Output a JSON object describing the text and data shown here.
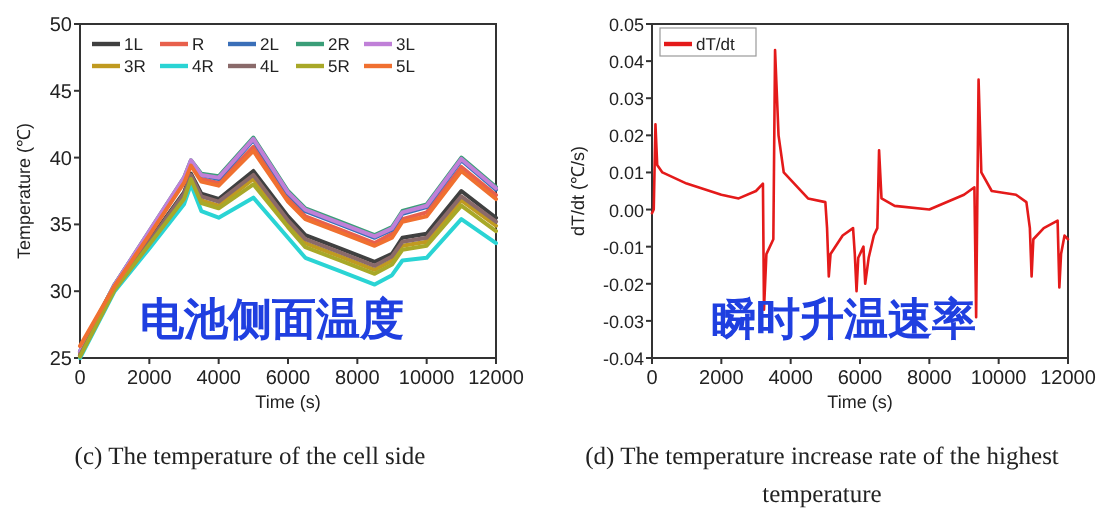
{
  "chart_data": [
    {
      "type": "line",
      "xlabel": "Time (s)",
      "ylabel": "Temperature (℃)",
      "xlim": [
        0,
        12000
      ],
      "ylim": [
        25,
        50
      ],
      "xticks": [
        0,
        2000,
        4000,
        6000,
        8000,
        10000,
        12000
      ],
      "yticks": [
        25,
        30,
        35,
        40,
        45,
        50
      ],
      "legend": "top left",
      "x": [
        0,
        1000,
        2000,
        3000,
        3200,
        3500,
        4000,
        5000,
        6000,
        6500,
        7500,
        8500,
        9000,
        9300,
        10000,
        11000,
        12000
      ],
      "series": [
        {
          "name": "1L",
          "color": "#404040",
          "values": [
            25.2,
            30.2,
            33.8,
            37.4,
            38.8,
            37.3,
            36.9,
            39.0,
            35.6,
            34.2,
            33.2,
            32.2,
            32.8,
            34.0,
            34.3,
            37.5,
            35.5
          ]
        },
        {
          "name": "R",
          "color": "#e8604c",
          "values": [
            25.4,
            30.4,
            34.3,
            38.2,
            39.5,
            38.4,
            38.1,
            40.8,
            37.0,
            35.6,
            34.6,
            33.6,
            34.3,
            35.4,
            35.9,
            39.3,
            37.2
          ]
        },
        {
          "name": "2L",
          "color": "#3a6fb8",
          "values": [
            25.5,
            30.5,
            34.4,
            38.4,
            39.7,
            38.7,
            38.4,
            41.3,
            37.3,
            36.0,
            35.0,
            34.0,
            34.6,
            35.8,
            36.3,
            39.8,
            37.6
          ]
        },
        {
          "name": "2R",
          "color": "#3a9e78",
          "values": [
            25.5,
            30.5,
            34.5,
            38.5,
            39.8,
            38.8,
            38.6,
            41.5,
            37.5,
            36.2,
            35.2,
            34.2,
            34.8,
            36.0,
            36.5,
            40.0,
            37.8
          ]
        },
        {
          "name": "3L",
          "color": "#c080d8",
          "values": [
            25.5,
            30.5,
            34.5,
            38.5,
            39.8,
            38.7,
            38.5,
            41.4,
            37.4,
            36.1,
            35.1,
            34.1,
            34.7,
            35.9,
            36.4,
            39.9,
            37.7
          ]
        },
        {
          "name": "3R",
          "color": "#c09a20",
          "values": [
            25.2,
            30.2,
            33.6,
            37.1,
            38.5,
            36.8,
            36.4,
            38.4,
            35.1,
            33.6,
            32.6,
            31.6,
            32.3,
            33.4,
            33.7,
            36.8,
            34.9
          ]
        },
        {
          "name": "4R",
          "color": "#2ad4d4",
          "values": [
            25.0,
            30.0,
            33.2,
            36.5,
            38.0,
            36.0,
            35.5,
            37.0,
            34.0,
            32.5,
            31.5,
            30.5,
            31.2,
            32.3,
            32.5,
            35.4,
            33.6
          ]
        },
        {
          "name": "4L",
          "color": "#8a6a6a",
          "values": [
            25.2,
            30.2,
            33.7,
            37.3,
            38.7,
            37.1,
            36.7,
            38.7,
            35.3,
            33.9,
            32.9,
            31.9,
            32.6,
            33.7,
            34.0,
            37.1,
            35.2
          ]
        },
        {
          "name": "5R",
          "color": "#a8a828",
          "values": [
            25.1,
            30.1,
            33.5,
            36.9,
            38.4,
            36.6,
            36.2,
            38.0,
            34.8,
            33.3,
            32.3,
            31.3,
            32.0,
            33.1,
            33.4,
            36.4,
            34.5
          ]
        },
        {
          "name": "5L",
          "color": "#f07030",
          "values": [
            25.9,
            30.4,
            34.2,
            38.1,
            39.4,
            38.2,
            37.9,
            40.5,
            36.7,
            35.4,
            34.4,
            33.4,
            34.0,
            35.2,
            35.6,
            39.0,
            36.9
          ]
        }
      ],
      "annotations": [
        "电池侧面温度",
        "(c) The temperature of the cell side"
      ]
    },
    {
      "type": "line",
      "xlabel": "Time (s)",
      "ylabel": "dT/dt (℃/s)",
      "xlim": [
        0,
        12000
      ],
      "ylim": [
        -0.04,
        0.05
      ],
      "xticks": [
        0,
        2000,
        4000,
        6000,
        8000,
        10000,
        12000
      ],
      "yticks": [
        -0.04,
        -0.03,
        -0.02,
        -0.01,
        {
          "value": 0,
          "label": "0.00"
        },
        0.01,
        0.02,
        0.03,
        0.04,
        0.05
      ],
      "legend": "top left",
      "series": [
        {
          "name": "dT/dt",
          "color": "#e41a1a",
          "x": [
            0,
            50,
            100,
            150,
            300,
            1000,
            2000,
            2500,
            3000,
            3200,
            3230,
            3300,
            3500,
            3550,
            3650,
            3800,
            4500,
            5000,
            5050,
            5100,
            5150,
            5500,
            5800,
            5850,
            5900,
            5950,
            6100,
            6150,
            6250,
            6400,
            6500,
            6550,
            6620,
            7000,
            8000,
            9000,
            9300,
            9350,
            9420,
            9500,
            9800,
            10500,
            10800,
            10900,
            10950,
            11000,
            11300,
            11700,
            11750,
            11800,
            11900,
            12000
          ],
          "values": [
            -0.001,
            0.0,
            0.023,
            0.012,
            0.01,
            0.007,
            0.004,
            0.003,
            0.005,
            0.007,
            -0.027,
            -0.012,
            -0.008,
            0.043,
            0.02,
            0.01,
            0.003,
            0.002,
            -0.005,
            -0.018,
            -0.012,
            -0.007,
            -0.005,
            -0.012,
            -0.022,
            -0.013,
            -0.01,
            -0.02,
            -0.013,
            -0.007,
            -0.005,
            0.016,
            0.003,
            0.001,
            0.0,
            0.004,
            0.006,
            -0.029,
            0.035,
            0.01,
            0.005,
            0.004,
            0.002,
            -0.005,
            -0.018,
            -0.008,
            -0.005,
            -0.003,
            -0.021,
            -0.012,
            -0.007,
            -0.008
          ]
        }
      ],
      "annotations": [
        "瞬时升温速率",
        "(d) The temperature increase rate of the highest temperature"
      ]
    }
  ]
}
